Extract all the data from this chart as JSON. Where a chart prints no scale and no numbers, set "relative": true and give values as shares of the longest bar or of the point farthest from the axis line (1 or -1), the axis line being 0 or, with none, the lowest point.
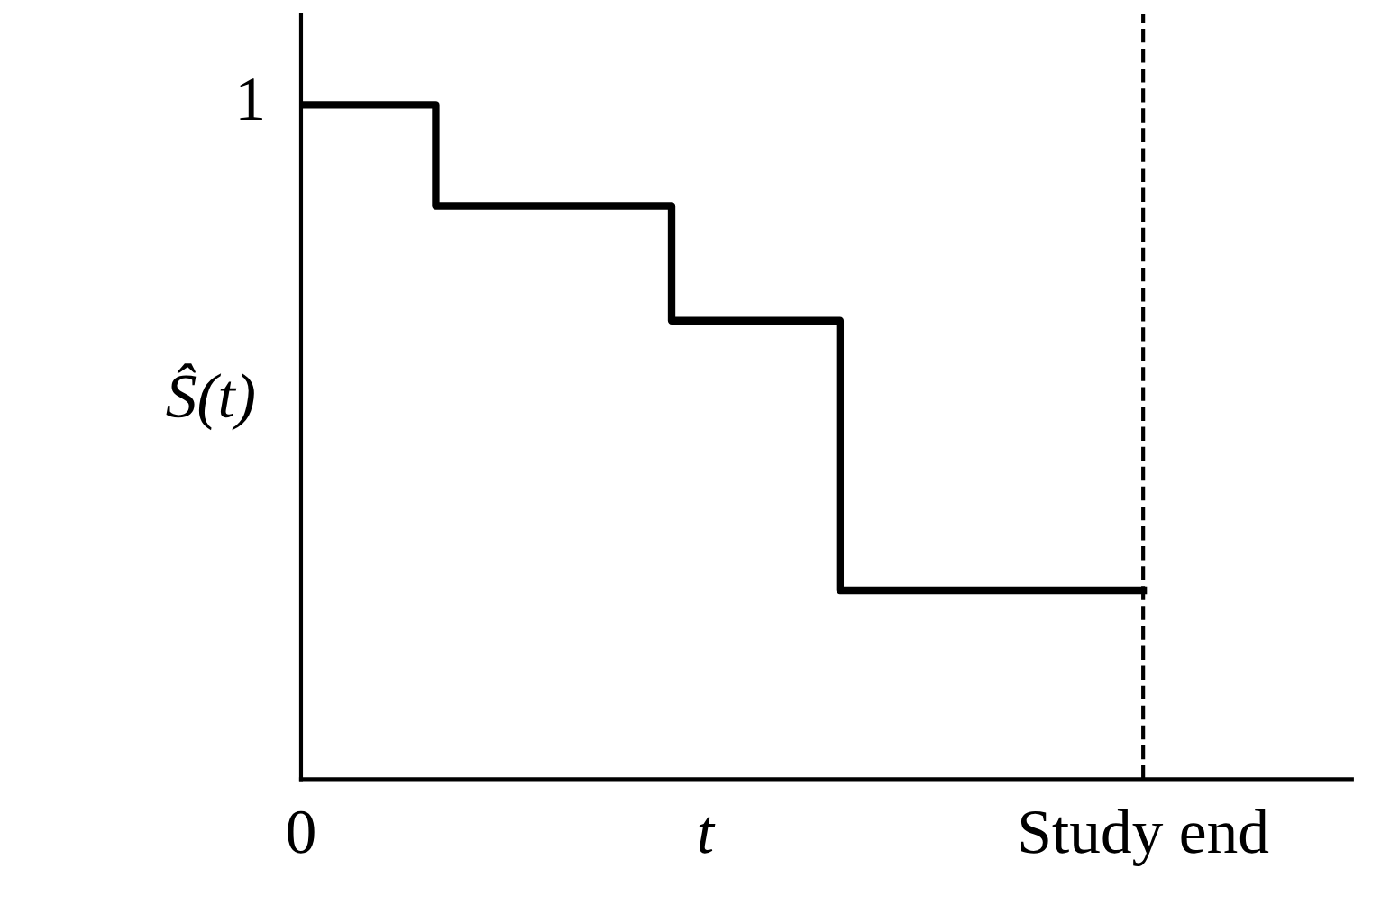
{
  "chart_data": {
    "type": "step",
    "relative": true,
    "ylabel": "Ŝ(t)",
    "categories": [
      "0",
      null,
      null,
      null,
      null,
      null,
      null,
      null,
      null,
      null,
      null,
      null,
      "t",
      null,
      null,
      null,
      null,
      null,
      null,
      null,
      null,
      null,
      null,
      null,
      null,
      "Study end"
    ],
    "values": [
      1,
      1,
      1,
      1,
      0.85,
      0.85,
      0.85,
      0.85,
      0.85,
      0.85,
      0.85,
      0.68,
      0.68,
      0.68,
      0.68,
      0.68,
      0.28,
      0.28,
      0.28,
      0.28,
      0.28,
      0.28,
      0.28,
      0.28,
      0.28,
      0.28
    ],
    "color": "#000000",
    "ref_lines": [
      {
        "axis": "x",
        "value": "Study end",
        "color": "#000000",
        "line_style": "dashed"
      }
    ],
    "annotations": [
      {
        "text": "1",
        "x": "0",
        "y": 1
      }
    ],
    "grid": false,
    "legend": false
  }
}
